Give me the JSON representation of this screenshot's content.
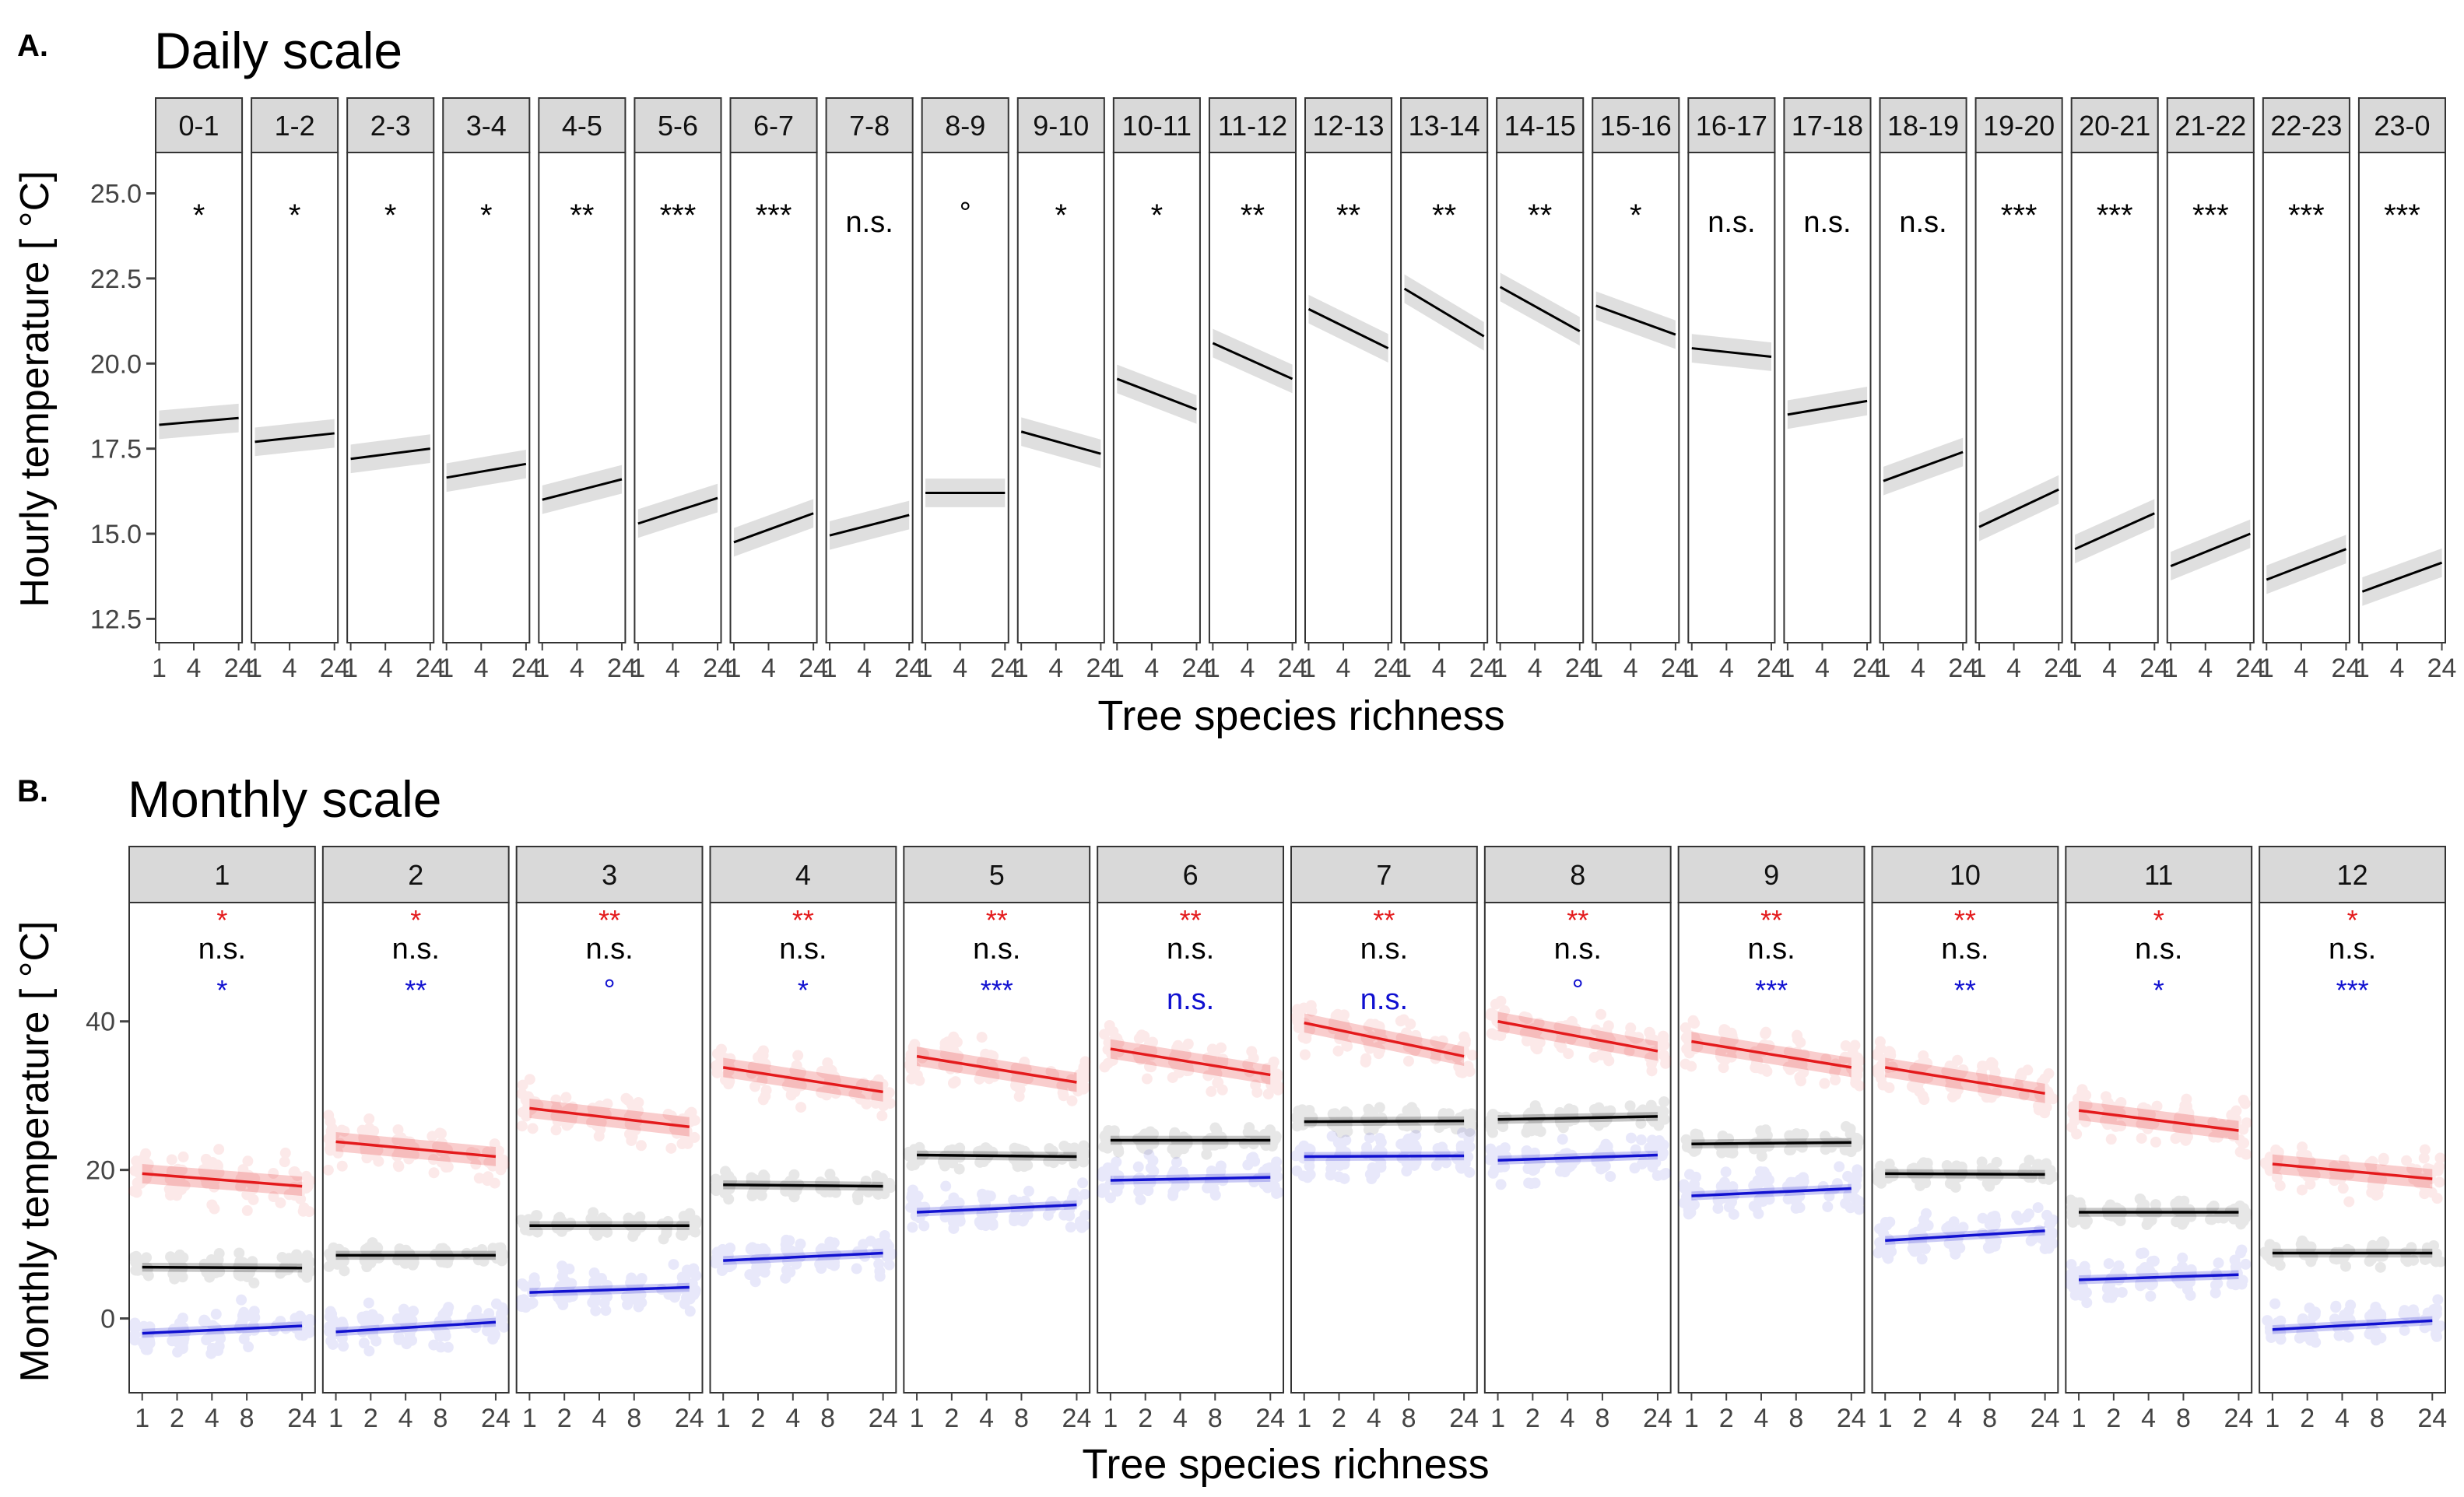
{
  "panel_a": {
    "letter": "A.",
    "title": "Daily scale",
    "ylabel": "Hourly temperature [ °C]",
    "xlabel": "Tree species richness"
  },
  "panel_b": {
    "letter": "B.",
    "title": "Monthly scale",
    "ylabel": "Monthly temperature [ °C]",
    "xlabel": "Tree species richness"
  },
  "colors": {
    "max": "#e41a1c",
    "mean": "#000000",
    "min": "#1010d0",
    "strip": "#d9d9d9",
    "band": "#d9d9d9"
  },
  "chart_data": [
    {
      "type": "line",
      "title": "Daily scale",
      "xlabel": "Tree species richness",
      "ylabel": "Hourly temperature [ °C]",
      "x_scale": "log",
      "x_ticks": [
        "1",
        "4",
        "24"
      ],
      "ylim": [
        11.8,
        26.2
      ],
      "y_ticks": [
        "12.5",
        "15.0",
        "17.5",
        "20.0",
        "22.5",
        "25.0"
      ],
      "grid": false,
      "facets": [
        {
          "label": "0-1",
          "sig": "*",
          "start": 18.2,
          "end": 18.4
        },
        {
          "label": "1-2",
          "sig": "*",
          "start": 17.7,
          "end": 17.95
        },
        {
          "label": "2-3",
          "sig": "*",
          "start": 17.2,
          "end": 17.5
        },
        {
          "label": "3-4",
          "sig": "*",
          "start": 16.65,
          "end": 17.05
        },
        {
          "label": "4-5",
          "sig": "**",
          "start": 16.0,
          "end": 16.6
        },
        {
          "label": "5-6",
          "sig": "***",
          "start": 15.3,
          "end": 16.05
        },
        {
          "label": "6-7",
          "sig": "***",
          "start": 14.75,
          "end": 15.6
        },
        {
          "label": "7-8",
          "sig": "n.s.",
          "start": 14.95,
          "end": 15.55
        },
        {
          "label": "8-9",
          "sig": "°",
          "start": 16.2,
          "end": 16.2
        },
        {
          "label": "9-10",
          "sig": "*",
          "start": 18.0,
          "end": 17.35
        },
        {
          "label": "10-11",
          "sig": "*",
          "start": 19.55,
          "end": 18.65
        },
        {
          "label": "11-12",
          "sig": "**",
          "start": 20.6,
          "end": 19.55
        },
        {
          "label": "12-13",
          "sig": "**",
          "start": 21.6,
          "end": 20.45
        },
        {
          "label": "13-14",
          "sig": "**",
          "start": 22.2,
          "end": 20.8
        },
        {
          "label": "14-15",
          "sig": "**",
          "start": 22.25,
          "end": 20.95
        },
        {
          "label": "15-16",
          "sig": "*",
          "start": 21.7,
          "end": 20.85
        },
        {
          "label": "16-17",
          "sig": "n.s.",
          "start": 20.45,
          "end": 20.2
        },
        {
          "label": "17-18",
          "sig": "n.s.",
          "start": 18.5,
          "end": 18.9
        },
        {
          "label": "18-19",
          "sig": "n.s.",
          "start": 16.55,
          "end": 17.4
        },
        {
          "label": "19-20",
          "sig": "***",
          "start": 15.2,
          "end": 16.3
        },
        {
          "label": "20-21",
          "sig": "***",
          "start": 14.55,
          "end": 15.6
        },
        {
          "label": "21-22",
          "sig": "***",
          "start": 14.05,
          "end": 15.0
        },
        {
          "label": "22-23",
          "sig": "***",
          "start": 13.65,
          "end": 14.55
        },
        {
          "label": "23-0",
          "sig": "***",
          "start": 13.3,
          "end": 14.15
        }
      ]
    },
    {
      "type": "scatter",
      "title": "Monthly scale",
      "xlabel": "Tree species richness",
      "ylabel": "Monthly temperature [ °C]",
      "x_scale": "log",
      "x_ticks": [
        "1",
        "2",
        "4",
        "8",
        "24"
      ],
      "ylim": [
        -10,
        56
      ],
      "y_ticks": [
        "0",
        "20",
        "40"
      ],
      "grid": false,
      "series_order": [
        "max",
        "mean",
        "min"
      ],
      "facets": [
        {
          "label": "1",
          "sig": {
            "max": "*",
            "mean": "n.s.",
            "min": "*"
          },
          "lines": {
            "max": [
              19.5,
              17.8
            ],
            "mean": [
              6.9,
              6.8
            ],
            "min": [
              -2.0,
              -1.0
            ]
          }
        },
        {
          "label": "2",
          "sig": {
            "max": "*",
            "mean": "n.s.",
            "min": "**"
          },
          "lines": {
            "max": [
              23.8,
              21.8
            ],
            "mean": [
              8.5,
              8.5
            ],
            "min": [
              -1.8,
              -0.5
            ]
          }
        },
        {
          "label": "3",
          "sig": {
            "max": "**",
            "mean": "n.s.",
            "min": "°"
          },
          "lines": {
            "max": [
              28.3,
              25.8
            ],
            "mean": [
              12.5,
              12.5
            ],
            "min": [
              3.5,
              4.2
            ]
          }
        },
        {
          "label": "4",
          "sig": {
            "max": "**",
            "mean": "n.s.",
            "min": "*"
          },
          "lines": {
            "max": [
              33.8,
              30.5
            ],
            "mean": [
              18.0,
              17.8
            ],
            "min": [
              7.8,
              8.8
            ]
          }
        },
        {
          "label": "5",
          "sig": {
            "max": "**",
            "mean": "n.s.",
            "min": "***"
          },
          "lines": {
            "max": [
              35.3,
              31.8
            ],
            "mean": [
              22.0,
              21.8
            ],
            "min": [
              14.3,
              15.3
            ]
          }
        },
        {
          "label": "6",
          "sig": {
            "max": "**",
            "mean": "n.s.",
            "min": "n.s."
          },
          "lines": {
            "max": [
              36.3,
              32.8
            ],
            "mean": [
              24.0,
              24.0
            ],
            "min": [
              18.6,
              19.0
            ]
          }
        },
        {
          "label": "7",
          "sig": {
            "max": "**",
            "mean": "n.s.",
            "min": "n.s."
          },
          "lines": {
            "max": [
              39.8,
              35.3
            ],
            "mean": [
              26.5,
              26.6
            ],
            "min": [
              21.8,
              21.9
            ]
          }
        },
        {
          "label": "8",
          "sig": {
            "max": "**",
            "mean": "n.s.",
            "min": "°"
          },
          "lines": {
            "max": [
              40.0,
              36.0
            ],
            "mean": [
              26.8,
              27.2
            ],
            "min": [
              21.3,
              22.0
            ]
          }
        },
        {
          "label": "9",
          "sig": {
            "max": "**",
            "mean": "n.s.",
            "min": "***"
          },
          "lines": {
            "max": [
              37.3,
              33.8
            ],
            "mean": [
              23.5,
              23.7
            ],
            "min": [
              16.5,
              17.5
            ]
          }
        },
        {
          "label": "10",
          "sig": {
            "max": "**",
            "mean": "n.s.",
            "min": "**"
          },
          "lines": {
            "max": [
              33.8,
              30.3
            ],
            "mean": [
              19.5,
              19.4
            ],
            "min": [
              10.5,
              11.8
            ]
          }
        },
        {
          "label": "11",
          "sig": {
            "max": "*",
            "mean": "n.s.",
            "min": "*"
          },
          "lines": {
            "max": [
              28.0,
              25.3
            ],
            "mean": [
              14.3,
              14.3
            ],
            "min": [
              5.2,
              5.9
            ]
          }
        },
        {
          "label": "12",
          "sig": {
            "max": "*",
            "mean": "n.s.",
            "min": "***"
          },
          "lines": {
            "max": [
              20.8,
              18.8
            ],
            "mean": [
              8.8,
              8.8
            ],
            "min": [
              -1.5,
              -0.3
            ]
          }
        }
      ]
    }
  ]
}
